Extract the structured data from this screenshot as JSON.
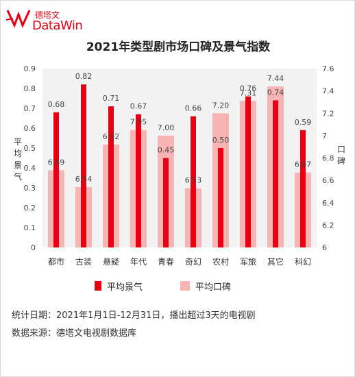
{
  "brand": {
    "logo_text_cn": "德塔文",
    "logo_text_en": "DataWin",
    "accent_color": "#e60012"
  },
  "chart_data": {
    "type": "bar",
    "title": "2021年类型剧市场口碑及景气指数",
    "categories": [
      "都市",
      "古装",
      "悬疑",
      "年代",
      "青春",
      "奇幻",
      "农村",
      "军旅",
      "其它",
      "科幻"
    ],
    "series": [
      {
        "name": "平均景气",
        "axis": "left",
        "color": "#e60012",
        "values": [
          0.68,
          0.82,
          0.71,
          0.67,
          0.45,
          0.66,
          0.5,
          0.76,
          0.74,
          0.59
        ]
      },
      {
        "name": "平均口碑",
        "axis": "right",
        "color": "#f6b4b4",
        "values": [
          6.69,
          6.54,
          6.92,
          7.05,
          7.0,
          6.53,
          7.2,
          7.31,
          7.44,
          6.67
        ]
      }
    ],
    "value_labels_left": [
      "0.68",
      "0.82",
      "0.71",
      "0.67",
      "0.45",
      "0.66",
      "0.50",
      "0.76",
      "0.74",
      "0.59"
    ],
    "value_labels_right": [
      "6.69",
      "6.54",
      "6.92",
      "7.05",
      "7.00",
      "6.53",
      "7.20",
      "7.31",
      "7.44",
      "6.67"
    ],
    "ylabel_left": "平均景气",
    "ylabel_right": "口碑",
    "ylim_left": [
      0,
      0.9
    ],
    "ylim_right": [
      6,
      7.6
    ],
    "yticks_left": [
      "0",
      "0.1",
      "0.2",
      "0.3",
      "0.4",
      "0.5",
      "0.6",
      "0.7",
      "0.8",
      "0.9"
    ],
    "yticks_right": [
      "6",
      "6.2",
      "6.4",
      "6.6",
      "6.8",
      "7",
      "7.2",
      "7.4",
      "7.6"
    ],
    "grid": false,
    "legend_position": "bottom",
    "plot_background": "#f2f2f2"
  },
  "footer": {
    "line1": "统计日期：2021年1月1日-12月31日，播出超过3天的电视剧",
    "line2": "数据来源：德塔文电视剧数据库"
  }
}
